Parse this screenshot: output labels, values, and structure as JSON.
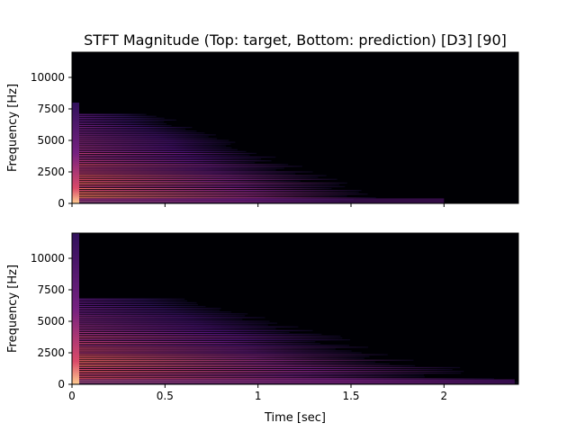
{
  "chart_data": {
    "type": "heatmap",
    "title": "STFT Magnitude (Top: target, Bottom: prediction) [D3] [90]",
    "xlabel": "Time [sec]",
    "ylabel": "Frequency [Hz]",
    "xlim": [
      0,
      2.4
    ],
    "ylim": [
      0,
      12000
    ],
    "xticks": [
      0,
      0.5,
      1,
      1.5,
      2
    ],
    "xtick_labels": [
      "0",
      "0.5",
      "1",
      "1.5",
      "2"
    ],
    "yticks": [
      0,
      2500,
      5000,
      7500,
      10000
    ],
    "ytick_labels": [
      "0",
      "2500",
      "5000",
      "7500",
      "10000"
    ],
    "colormap": "magma",
    "panels": [
      {
        "name": "target",
        "harmonic_spacing_hz": 147,
        "harmonic_max_hz": 7200,
        "decay_end_sec": 1.72,
        "upper_limit_hz": 8000,
        "tail_end_sec": 2.0
      },
      {
        "name": "prediction",
        "harmonic_spacing_hz": 147,
        "harmonic_max_hz": 6800,
        "decay_end_sec": 2.38,
        "upper_limit_hz": 12000,
        "tail_end_sec": 2.38
      }
    ]
  }
}
